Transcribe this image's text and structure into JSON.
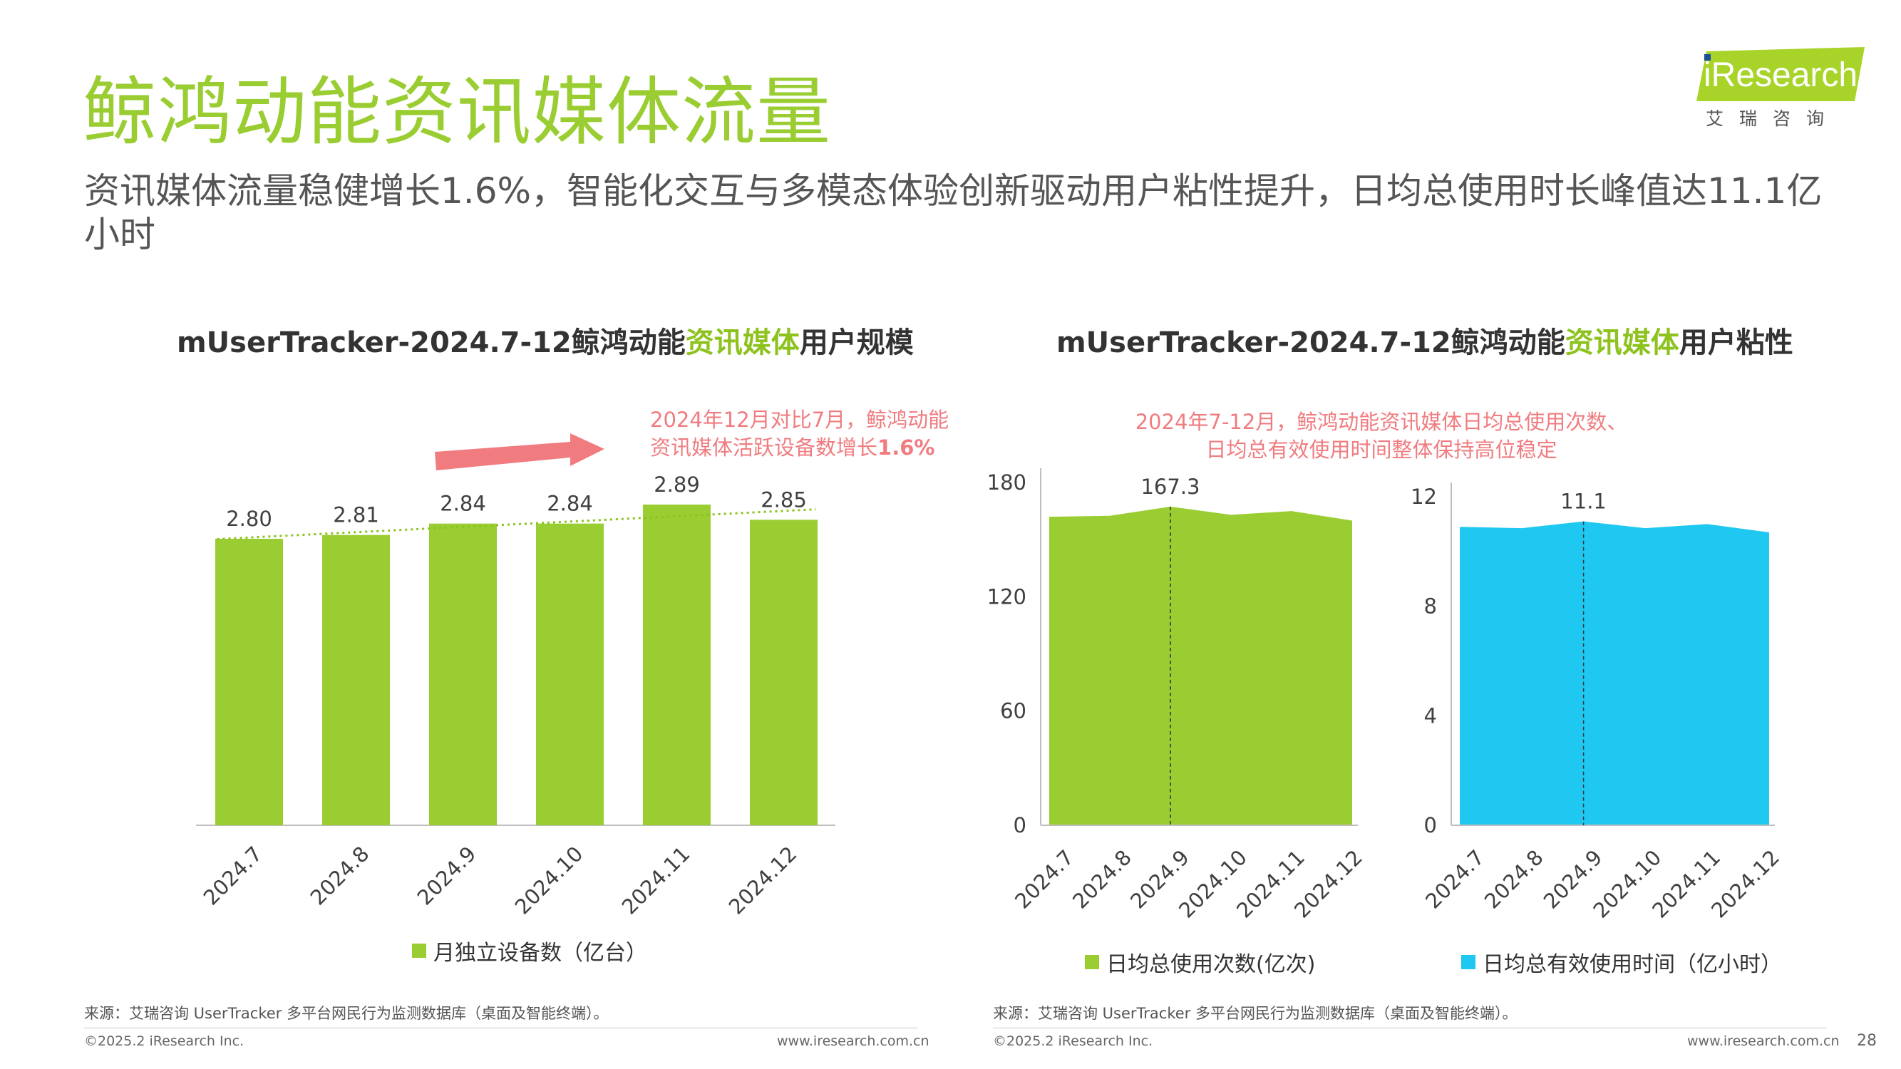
{
  "page": {
    "title": "鲸鸿动能资讯媒体流量",
    "subtitle": "资讯媒体流量稳健增长1.6%，智能化交互与多模态体验创新驱动用户粘性提升，日均总使用时长峰值达11.1亿小时",
    "logo": {
      "text": "iResearch",
      "cn": "艾瑞咨询"
    },
    "page_number": "28"
  },
  "left": {
    "title_pre": "mUserTracker-2024.7-12鲸鸿动能",
    "title_hl": "资讯媒体",
    "title_post": "用户规模",
    "annotation_line1": "2024年12月对比7月，鲸鸿动能",
    "annotation_line2_pre": "资讯媒体活跃设备数增长",
    "annotation_line2_bold": "1.6%",
    "legend": "月独立设备数（亿台）",
    "source": "来源：艾瑞咨询 UserTracker 多平台网民行为监测数据库（桌面及智能终端）。",
    "copyright": "©2025.2 iResearch Inc.",
    "url": "www.iresearch.com.cn"
  },
  "right": {
    "title_pre": "mUserTracker-2024.7-12鲸鸿动能",
    "title_hl": "资讯媒体",
    "title_post": "用户粘性",
    "annotation_line1": "2024年7-12月，鲸鸿动能资讯媒体日均总使用次数、",
    "annotation_line2": "日均总有效使用时间整体保持高位稳定",
    "legend1": "日均总使用次数(亿次)",
    "legend2": "日均总有效使用时间（亿小时）",
    "source": "来源：艾瑞咨询 UserTracker 多平台网民行为监测数据库（桌面及智能终端）。",
    "copyright": "©2025.2 iResearch Inc.",
    "url": "www.iresearch.com.cn"
  },
  "colors": {
    "green": "#9acd32",
    "cyan": "#1ec8f0",
    "accent": "#8dc21f",
    "arrow": "#f07c80"
  },
  "chart_data": [
    {
      "type": "bar",
      "categories": [
        "2024.7",
        "2024.8",
        "2024.9",
        "2024.10",
        "2024.11",
        "2024.12"
      ],
      "series": [
        {
          "name": "月独立设备数（亿台）",
          "values": [
            2.8,
            2.81,
            2.84,
            2.84,
            2.89,
            2.85
          ]
        }
      ],
      "data_labels": [
        "2.80",
        "2.81",
        "2.84",
        "2.84",
        "2.89",
        "2.85"
      ],
      "trendline": true,
      "ylim": [
        0,
        3.4
      ]
    },
    {
      "type": "area",
      "categories": [
        "2024.7",
        "2024.8",
        "2024.9",
        "2024.10",
        "2024.11",
        "2024.12"
      ],
      "series": [
        {
          "name": "日均总使用次数(亿次)",
          "values": [
            162,
            162.5,
            167.3,
            163,
            165,
            160
          ]
        }
      ],
      "yticks": [
        0,
        60,
        120,
        180
      ],
      "ylim": [
        0,
        180
      ],
      "peak_label": "167.3",
      "peak_index": 2
    },
    {
      "type": "area",
      "categories": [
        "2024.7",
        "2024.8",
        "2024.9",
        "2024.10",
        "2024.11",
        "2024.12"
      ],
      "series": [
        {
          "name": "日均总有效使用时间（亿小时）",
          "values": [
            10.9,
            10.85,
            11.1,
            10.85,
            11.0,
            10.7
          ]
        }
      ],
      "yticks": [
        0,
        4,
        8,
        12
      ],
      "ylim": [
        0,
        12
      ],
      "peak_label": "11.1",
      "peak_index": 2
    }
  ]
}
